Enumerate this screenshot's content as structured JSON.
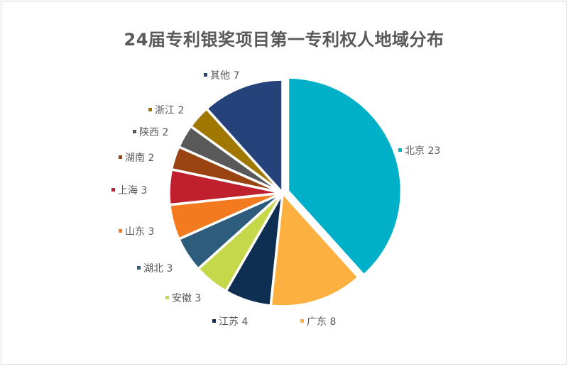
{
  "chart_data": {
    "type": "pie",
    "title": "24届专利银奖项目第一专利权人地域分布",
    "categories": [
      "北京",
      "广东",
      "江苏",
      "安徽",
      "湖北",
      "山东",
      "上海",
      "湖南",
      "陕西",
      "浙江",
      "其他"
    ],
    "values": [
      23,
      8,
      4,
      3,
      3,
      3,
      3,
      2,
      2,
      2,
      7
    ],
    "colors": [
      "#00b0c8",
      "#fbb040",
      "#0e2f52",
      "#c5d84a",
      "#2e5c7d",
      "#f47a1f",
      "#c0202e",
      "#9a4412",
      "#595959",
      "#a07800",
      "#25427a"
    ],
    "labels": [
      "北京 23",
      "广东 8",
      "江苏 4",
      "安徽 3",
      "湖北 3",
      "山东 3",
      "上海 3",
      "湖南 2",
      "陕西 2",
      "浙江 2",
      "其他 7"
    ],
    "exploded": "北京",
    "legend": "data labels beside slices"
  }
}
